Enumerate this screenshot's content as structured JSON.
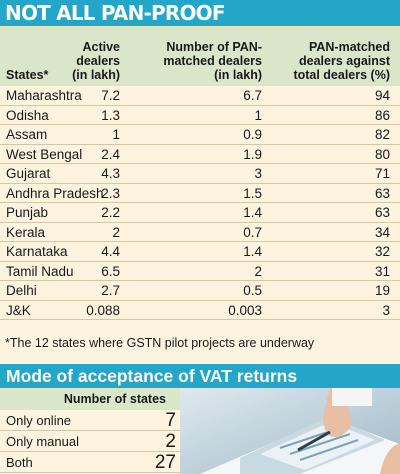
{
  "title": "NOT ALL PAN-PROOF",
  "table": {
    "headers": {
      "states": "States*",
      "active": [
        "Active",
        "dealers",
        "(in lakh)"
      ],
      "pan": [
        "Number of PAN-",
        "matched dealers",
        "(in lakh)"
      ],
      "pct": [
        "PAN-matched",
        "dealers against",
        "total dealers (%)"
      ]
    },
    "rows": [
      {
        "state": "Maharashtra",
        "active": "7.2",
        "pan": "6.7",
        "pct": "94"
      },
      {
        "state": "Odisha",
        "active": "1.3",
        "pan": "1",
        "pct": "86"
      },
      {
        "state": "Assam",
        "active": "1",
        "pan": "0.9",
        "pct": "82"
      },
      {
        "state": "West Bengal",
        "active": "2.4",
        "pan": "1.9",
        "pct": "80"
      },
      {
        "state": "Gujarat",
        "active": "4.3",
        "pan": "3",
        "pct": "71"
      },
      {
        "state": "Andhra Pradesh",
        "active": "2.3",
        "pan": "1.5",
        "pct": "63"
      },
      {
        "state": "Punjab",
        "active": "2.2",
        "pan": "1.4",
        "pct": "63"
      },
      {
        "state": "Kerala",
        "active": "2",
        "pan": "0.7",
        "pct": "34"
      },
      {
        "state": "Karnataka",
        "active": "4.4",
        "pan": "1.4",
        "pct": "32"
      },
      {
        "state": "Tamil Nadu",
        "active": "6.5",
        "pan": "2",
        "pct": "31"
      },
      {
        "state": "Delhi",
        "active": "2.7",
        "pan": "0.5",
        "pct": "19"
      },
      {
        "state": "J&K",
        "active": "0.088",
        "pan": "0.003",
        "pct": "3"
      }
    ]
  },
  "footnote": "*The 12 states where GSTN pilot projects are underway",
  "mode": {
    "title": "Mode of acceptance of VAT returns",
    "header": "Number of states",
    "rows": [
      {
        "label": "Only online",
        "value": "7"
      },
      {
        "label": "Only manual",
        "value": "2"
      },
      {
        "label": "Both",
        "value": "27"
      }
    ]
  },
  "colors": {
    "accent": "#24a6c9",
    "header_bg": "#d9e6c9",
    "page_bg": "#fdf3df"
  }
}
